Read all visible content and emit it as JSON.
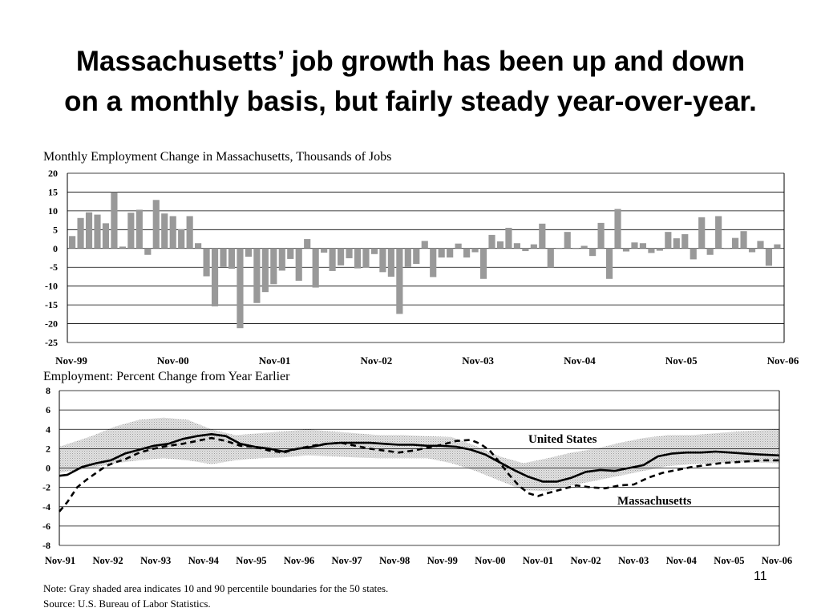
{
  "slide": {
    "headline_line1": "Massachusetts’ job growth has been up and down",
    "headline_line2": "on a monthly basis, but fairly steady year-over-year.",
    "note": "Note: Gray shaded area indicates 10 and 90 percentile boundaries for the 50 states.",
    "source": "Source: U.S. Bureau of Labor Statistics.",
    "page_number": "11"
  },
  "chart_data": [
    {
      "type": "bar",
      "title": "Monthly Employment Change in Massachusetts, Thousands of Jobs",
      "xlabel": "",
      "ylabel": "",
      "ylim": [
        -25,
        20
      ],
      "yticks": [
        20,
        15,
        10,
        5,
        0,
        -5,
        -10,
        -15,
        -20,
        -25
      ],
      "xticks": [
        "Nov-99",
        "Nov-00",
        "Nov-01",
        "Nov-02",
        "Nov-03",
        "Nov-04",
        "Nov-05",
        "Nov-06"
      ],
      "grid": true,
      "bar_color": "#999999",
      "values": [
        3.3,
        8.1,
        9.6,
        9.0,
        6.7,
        15.0,
        0.5,
        9.5,
        10.3,
        -1.7,
        12.9,
        9.3,
        8.6,
        5.1,
        8.6,
        1.4,
        -7.4,
        -15.4,
        -4.9,
        -5.4,
        -21.2,
        -2.2,
        -14.5,
        -11.6,
        -9.5,
        -5.9,
        -2.8,
        -8.6,
        2.5,
        -10.4,
        -1.1,
        -6.0,
        -4.5,
        -2.6,
        -5.3,
        -5.1,
        -1.5,
        -6.3,
        -7.5,
        -17.4,
        -4.9,
        -4.1,
        2.0,
        -7.6,
        -2.4,
        -2.4,
        1.3,
        -2.4,
        -1.0,
        -8.1,
        3.6,
        1.9,
        5.5,
        1.4,
        -0.7,
        1.1,
        6.6,
        -5.0,
        0.0,
        4.4,
        0.0,
        0.7,
        -2.0,
        6.8,
        -8.1,
        10.5,
        -0.8,
        1.6,
        1.4,
        -1.2,
        -0.6,
        4.4,
        2.7,
        3.8,
        -2.9,
        8.3,
        -1.7,
        8.6,
        0.0,
        2.8,
        4.6,
        -1.0,
        2.0,
        -4.6,
        1.1
      ]
    },
    {
      "type": "line",
      "title": "Employment: Percent Change from Year Earlier",
      "xlabel": "",
      "ylabel": "",
      "ylim": [
        -8,
        8
      ],
      "yticks": [
        8,
        6,
        4,
        2,
        0,
        -2,
        -4,
        -6,
        -8
      ],
      "x_start": "Nov-91",
      "x_end": "Nov-06",
      "xticks": [
        "Nov-91",
        "Nov-92",
        "Nov-93",
        "Nov-94",
        "Nov-95",
        "Nov-96",
        "Nov-97",
        "Nov-98",
        "Nov-99",
        "Nov-00",
        "Nov-01",
        "Nov-02",
        "Nov-03",
        "Nov-04",
        "Nov-05",
        "Nov-06"
      ],
      "grid": true,
      "band_label": "10 and 90 percentile boundaries for the 50 states",
      "band_year": [
        1991.83,
        1992.5,
        1993,
        1993.5,
        1994,
        1994.5,
        1995,
        1995.5,
        1996,
        1996.5,
        1997,
        1997.5,
        1998,
        1998.5,
        1999,
        1999.5,
        2000,
        2000.5,
        2001,
        2001.5,
        2002,
        2002.5,
        2003,
        2003.5,
        2004,
        2004.5,
        2005,
        2005.5,
        2006,
        2006.83
      ],
      "band_low": [
        -0.5,
        0.0,
        0.5,
        0.8,
        1.0,
        0.8,
        0.4,
        0.8,
        1.0,
        1.1,
        1.3,
        1.2,
        1.1,
        1.0,
        1.0,
        1.0,
        0.5,
        -0.3,
        -1.3,
        -2.3,
        -2.4,
        -1.8,
        -1.3,
        -0.8,
        -0.3,
        0.2,
        0.4,
        0.5,
        0.6,
        0.5
      ],
      "band_high": [
        2.2,
        3.3,
        4.3,
        5.0,
        5.2,
        5.0,
        4.0,
        3.4,
        3.6,
        3.8,
        4.0,
        3.8,
        3.6,
        3.4,
        3.4,
        3.3,
        3.2,
        2.3,
        1.2,
        0.5,
        1.0,
        1.6,
        2.0,
        2.6,
        3.1,
        3.4,
        3.4,
        3.6,
        3.8,
        4.0
      ],
      "series": [
        {
          "name": "United States",
          "style": "solid",
          "x": [
            1991.83,
            1992.0,
            1992.3,
            1992.6,
            1992.9,
            1993.2,
            1993.5,
            1993.8,
            1994.1,
            1994.4,
            1994.7,
            1995.0,
            1995.3,
            1995.6,
            1995.9,
            1996.2,
            1996.5,
            1996.8,
            1997.1,
            1997.4,
            1997.7,
            1998.0,
            1998.3,
            1998.6,
            1998.9,
            1999.2,
            1999.5,
            1999.8,
            2000.1,
            2000.4,
            2000.7,
            2001.0,
            2001.3,
            2001.6,
            2001.9,
            2002.2,
            2002.5,
            2002.8,
            2003.1,
            2003.4,
            2003.7,
            2004.0,
            2004.3,
            2004.6,
            2004.9,
            2005.2,
            2005.5,
            2005.8,
            2006.1,
            2006.4,
            2006.83
          ],
          "values": [
            -0.8,
            -0.7,
            0.1,
            0.5,
            0.8,
            1.5,
            1.9,
            2.3,
            2.5,
            3.0,
            3.3,
            3.5,
            3.3,
            2.5,
            2.2,
            2.0,
            1.7,
            2.0,
            2.2,
            2.5,
            2.6,
            2.6,
            2.6,
            2.5,
            2.4,
            2.4,
            2.3,
            2.3,
            2.2,
            1.9,
            1.4,
            0.6,
            -0.2,
            -0.9,
            -1.4,
            -1.4,
            -1.0,
            -0.4,
            -0.2,
            -0.3,
            0.0,
            0.3,
            1.2,
            1.5,
            1.6,
            1.6,
            1.7,
            1.6,
            1.5,
            1.4,
            1.3
          ]
        },
        {
          "name": "Massachusetts",
          "style": "dashed",
          "x": [
            1991.83,
            1992.0,
            1992.2,
            1992.4,
            1992.6,
            1992.8,
            1993.0,
            1993.2,
            1993.5,
            1993.8,
            1994.1,
            1994.4,
            1994.7,
            1995.0,
            1995.3,
            1995.6,
            1995.9,
            1996.2,
            1996.5,
            1996.8,
            1997.1,
            1997.4,
            1997.7,
            1998.0,
            1998.3,
            1998.6,
            1998.9,
            1999.2,
            1999.5,
            1999.8,
            2000.1,
            2000.4,
            2000.6,
            2000.8,
            2001.0,
            2001.2,
            2001.4,
            2001.6,
            2001.8,
            2002.0,
            2002.3,
            2002.6,
            2002.9,
            2003.2,
            2003.5,
            2003.8,
            2004.1,
            2004.4,
            2004.7,
            2005.0,
            2005.3,
            2005.6,
            2005.9,
            2006.2,
            2006.5,
            2006.83
          ],
          "values": [
            -4.5,
            -3.5,
            -2.0,
            -1.2,
            -0.5,
            0.2,
            0.6,
            0.9,
            1.6,
            2.0,
            2.3,
            2.5,
            2.8,
            3.1,
            2.8,
            2.3,
            2.2,
            1.8,
            1.6,
            2.0,
            2.3,
            2.5,
            2.6,
            2.3,
            2.0,
            1.8,
            1.6,
            1.8,
            2.1,
            2.4,
            2.8,
            2.9,
            2.5,
            1.8,
            0.6,
            -0.7,
            -1.8,
            -2.6,
            -2.9,
            -2.6,
            -2.2,
            -1.8,
            -2.0,
            -2.1,
            -1.8,
            -1.7,
            -1.0,
            -0.5,
            -0.2,
            0.1,
            0.3,
            0.5,
            0.6,
            0.7,
            0.8,
            0.8
          ]
        }
      ]
    }
  ]
}
